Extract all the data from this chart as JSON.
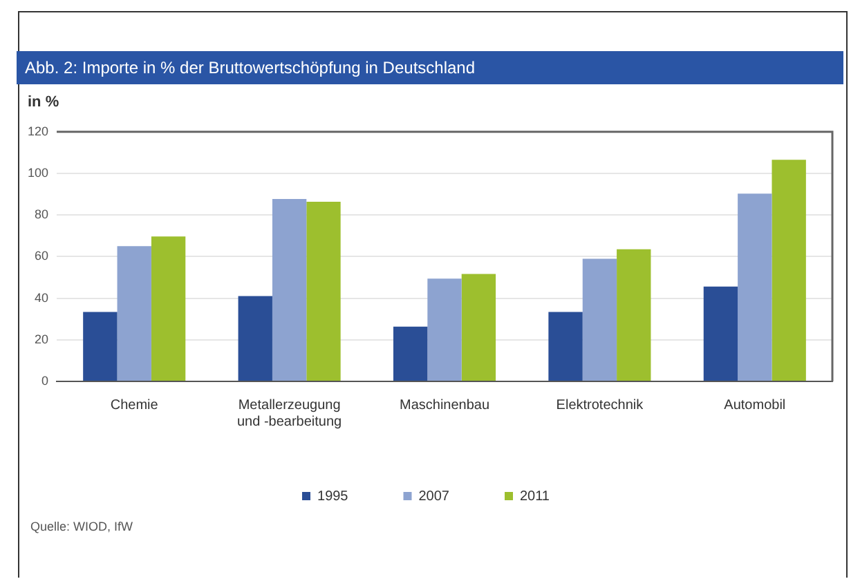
{
  "chart_data": {
    "type": "bar",
    "title": "Abb. 2: Importe in % der Bruttowertschöpfung in Deutschland",
    "ylabel": "in %",
    "categories": [
      "Chemie",
      [
        "Metallerzeugung",
        "und -bearbeitung"
      ],
      "Maschinenbau",
      "Elektrotechnik",
      "Automobil"
    ],
    "series": [
      {
        "name": "1995",
        "color": "#2a4e96",
        "values": [
          33.4,
          41,
          26.3,
          33.4,
          45.6
        ]
      },
      {
        "name": "2007",
        "color": "#8da3d0",
        "values": [
          65,
          87.7,
          49.4,
          59,
          90.3
        ]
      },
      {
        "name": "2011",
        "color": "#9dbf2e",
        "values": [
          69.7,
          86.4,
          51.7,
          63.5,
          106.6
        ]
      }
    ],
    "ylim": [
      0,
      120
    ],
    "yticks": [
      0,
      20,
      40,
      60,
      80,
      100,
      120
    ],
    "grid": "y",
    "legend": "bottom",
    "annotations": [
      "Quelle: WIOD, IfW"
    ]
  }
}
